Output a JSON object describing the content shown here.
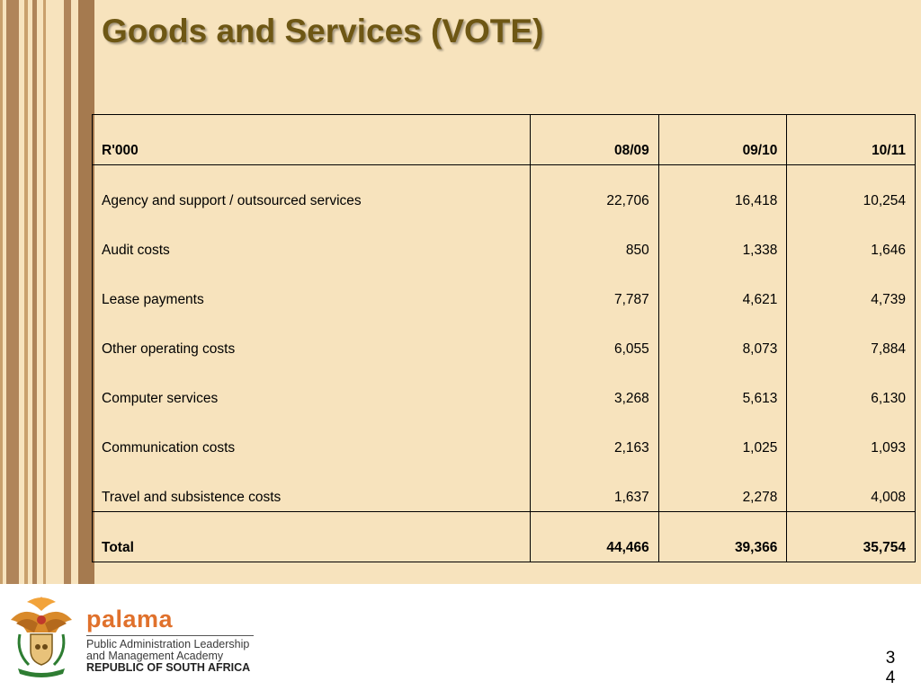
{
  "slide": {
    "title": "Goods and Services (VOTE)"
  },
  "table": {
    "headers": [
      "R'000",
      "08/09",
      "09/10",
      "10/11"
    ],
    "rows": [
      {
        "label": "Agency and support / outsourced services",
        "values": [
          "22,706",
          "16,418",
          "10,254"
        ]
      },
      {
        "label": "Audit costs",
        "values": [
          "850",
          "1,338",
          "1,646"
        ]
      },
      {
        "label": "Lease payments",
        "values": [
          "7,787",
          "4,621",
          "4,739"
        ]
      },
      {
        "label": "Other operating costs",
        "values": [
          "6,055",
          "8,073",
          "7,884"
        ]
      },
      {
        "label": "Computer services",
        "values": [
          "3,268",
          "5,613",
          "6,130"
        ]
      },
      {
        "label": "Communication costs",
        "values": [
          "2,163",
          "1,025",
          "1,093"
        ]
      },
      {
        "label": "Travel and subsistence costs",
        "values": [
          "1,637",
          "2,278",
          "4,008"
        ]
      }
    ],
    "total": {
      "label": "Total",
      "values": [
        "44,466",
        "39,366",
        "35,754"
      ]
    }
  },
  "footer": {
    "logo_word": "palama",
    "line1": "Public Administration Leadership",
    "line2": "and Management Academy",
    "line3": "REPUBLIC OF SOUTH AFRICA",
    "page_number": "34"
  },
  "colors": {
    "background": "#f7e3bd",
    "title": "#6e5714",
    "stripe_dark": "#a57a4f",
    "palama_orange": "#e0712c"
  },
  "icons": [
    "coat-of-arms-icon"
  ]
}
